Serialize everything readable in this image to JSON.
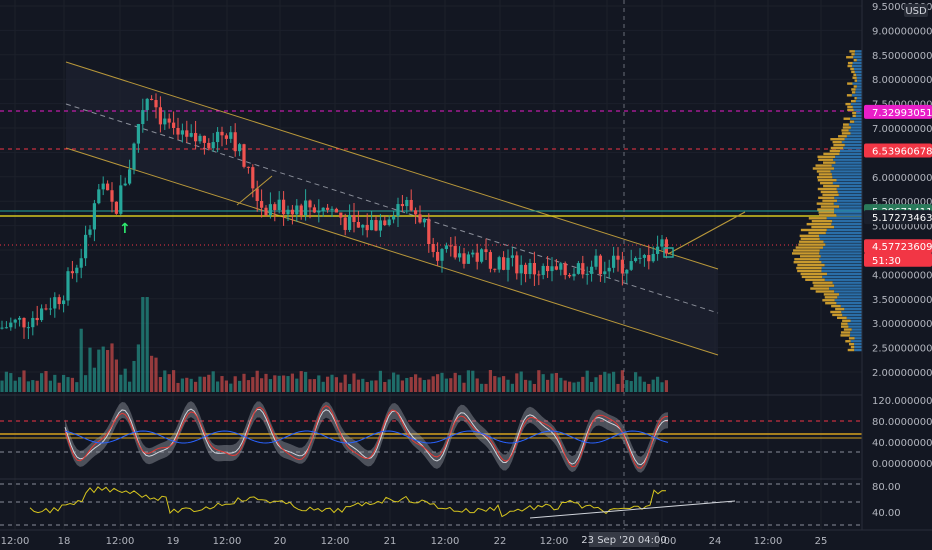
{
  "currency": "USD",
  "colors": {
    "background": "#131722",
    "up": "#26a69a",
    "down": "#ef5350",
    "channel": "#b8973a",
    "grid": "#1e222d",
    "text": "#b2b5be"
  },
  "main_price_labels": [
    "9.50000000",
    "9.00000000",
    "8.50000000",
    "8.00000000",
    "7.50000000",
    "7.00000000",
    "6.50000000",
    "6.00000000",
    "5.50000000",
    "5.00000000",
    "4.50000000",
    "4.00000000",
    "3.50000000",
    "3.00000000",
    "2.50000000",
    "2.00000000"
  ],
  "price_tags": [
    {
      "label": "7.32993051",
      "color": "#e91ec8",
      "text_color": "#ffffff",
      "price": 7.33
    },
    {
      "label": "6.53960678",
      "color": "#f23645",
      "text_color": "#ffffff",
      "price": 6.54
    },
    {
      "label": "5.29671411",
      "color": "#2a7a5a",
      "text_color": "#ffffff",
      "price": 5.297
    },
    {
      "label": "5.17273463",
      "color": "#1a1f2b",
      "text_color": "#ffffff",
      "price": 5.173
    },
    {
      "label": "4.57723609",
      "color": "#f23645",
      "text_color": "#ffffff",
      "price": 4.577
    },
    {
      "label": "51:30",
      "color": "#f23645",
      "text_color": "#ffffff",
      "price": 4.3
    }
  ],
  "osc1_labels": [
    "120.00000000",
    "80.00000000",
    "40.00000000",
    "0.00000000"
  ],
  "osc2_labels": [
    "80.00",
    "40.00"
  ],
  "time_labels": [
    "12:00",
    "18",
    "12:00",
    "19",
    "12:00",
    "20",
    "12:00",
    "21",
    "12:00",
    "22",
    "12:00",
    "23",
    "12:00",
    "24",
    "12:00",
    "25"
  ],
  "crosshair_time_label": "23 Sep '20   04:00",
  "chart_data": {
    "type": "candlestick",
    "title": "",
    "currency": "USD",
    "ylim": [
      2.3,
      9.6
    ],
    "candle_samples": [
      {
        "t": "18 00:00",
        "close": 2.9
      },
      {
        "t": "18 12:00",
        "close": 4.8
      },
      {
        "t": "18 18:00",
        "close": 7.2
      },
      {
        "t": "19 00:00",
        "close": 6.6
      },
      {
        "t": "19 12:00",
        "close": 7.0
      },
      {
        "t": "20 00:00",
        "close": 5.6
      },
      {
        "t": "20 12:00",
        "close": 5.3
      },
      {
        "t": "21 00:00",
        "close": 5.2
      },
      {
        "t": "21 12:00",
        "close": 4.3
      },
      {
        "t": "22 00:00",
        "close": 4.3
      },
      {
        "t": "22 12:00",
        "close": 4.1
      },
      {
        "t": "23 00:00",
        "close": 4.2
      },
      {
        "t": "23 04:00",
        "close": 4.3
      },
      {
        "t": "23 08:00",
        "close": 4.7
      }
    ],
    "horizontal_levels": [
      7.33,
      6.54,
      5.297,
      5.173,
      4.577
    ],
    "oscillator_1_levels": [
      80,
      40
    ],
    "oscillator_2_levels": [
      80,
      40
    ]
  }
}
